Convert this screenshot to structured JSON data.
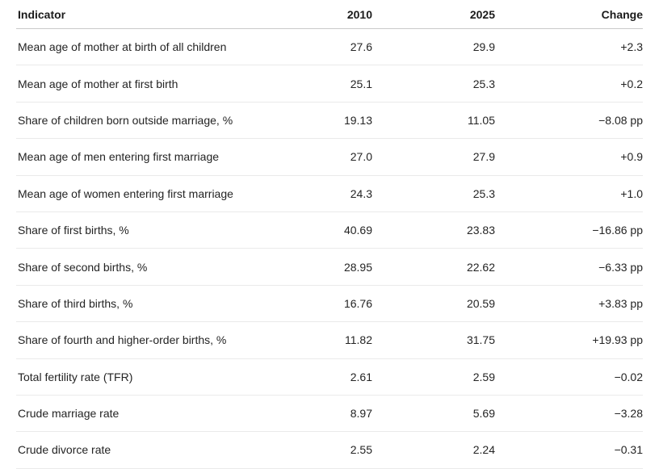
{
  "colors": {
    "background": "#ffffff",
    "text": "#242424",
    "header_text": "#1b1b1b",
    "header_border": "#c9c9c9",
    "row_border": "#eaeaea"
  },
  "chart_data": {
    "type": "table",
    "title": "",
    "columns": [
      "Indicator",
      "2010",
      "2025",
      "Change"
    ],
    "rows": [
      {
        "indicator": "Mean age of mother at birth of all children",
        "y2010": "27.6",
        "y2025": "29.9",
        "change": "+2.3"
      },
      {
        "indicator": "Mean age of mother at first birth",
        "y2010": "25.1",
        "y2025": "25.3",
        "change": "+0.2"
      },
      {
        "indicator": "Share of children born outside marriage, %",
        "y2010": "19.13",
        "y2025": "11.05",
        "change": "−8.08 pp"
      },
      {
        "indicator": "Mean age of men entering first marriage",
        "y2010": "27.0",
        "y2025": "27.9",
        "change": "+0.9"
      },
      {
        "indicator": "Mean age of women entering first marriage",
        "y2010": "24.3",
        "y2025": "25.3",
        "change": "+1.0"
      },
      {
        "indicator": "Share of first births, %",
        "y2010": "40.69",
        "y2025": "23.83",
        "change": "−16.86 pp"
      },
      {
        "indicator": "Share of second births, %",
        "y2010": "28.95",
        "y2025": "22.62",
        "change": "−6.33 pp"
      },
      {
        "indicator": "Share of third births, %",
        "y2010": "16.76",
        "y2025": "20.59",
        "change": "+3.83 pp"
      },
      {
        "indicator": "Share of fourth and higher-order births, %",
        "y2010": "11.82",
        "y2025": "31.75",
        "change": "+19.93 pp"
      },
      {
        "indicator": "Total fertility rate (TFR)",
        "y2010": "2.61",
        "y2025": "2.59",
        "change": "−0.02"
      },
      {
        "indicator": "Crude marriage rate",
        "y2010": "8.97",
        "y2025": "5.69",
        "change": "−3.28"
      },
      {
        "indicator": "Crude divorce rate",
        "y2010": "2.55",
        "y2025": "2.24",
        "change": "−0.31"
      }
    ]
  }
}
